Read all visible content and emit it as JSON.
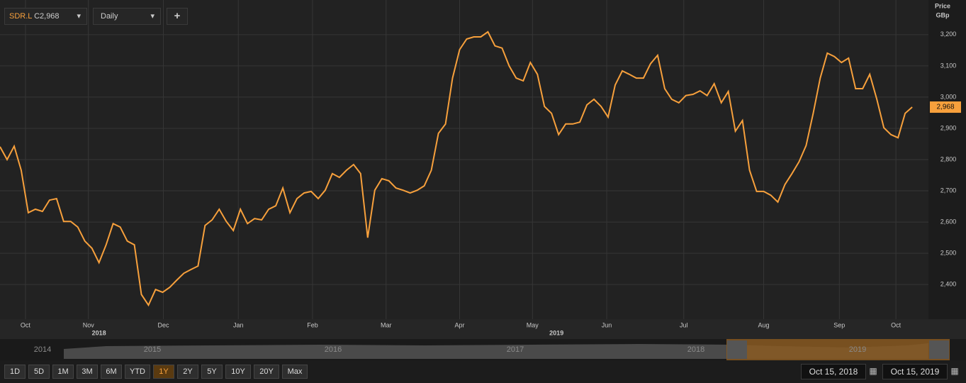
{
  "toolbar": {
    "symbol": "SDR.L",
    "close_prefix": "C",
    "close": "2,968",
    "interval": "Daily",
    "add": "+"
  },
  "chart_data": {
    "type": "line",
    "axis_title": [
      "Price",
      "GBp"
    ],
    "values": [
      2841,
      2800,
      2843,
      2766,
      2630,
      2641,
      2634,
      2670,
      2675,
      2602,
      2602,
      2584,
      2539,
      2516,
      2470,
      2527,
      2595,
      2584,
      2539,
      2527,
      2368,
      2334,
      2384,
      2375,
      2391,
      2414,
      2436,
      2448,
      2459,
      2589,
      2607,
      2641,
      2602,
      2573,
      2641,
      2595,
      2611,
      2607,
      2641,
      2652,
      2709,
      2630,
      2675,
      2693,
      2698,
      2675,
      2702,
      2755,
      2743,
      2766,
      2784,
      2755,
      2550,
      2702,
      2739,
      2732,
      2709,
      2702,
      2693,
      2702,
      2716,
      2766,
      2884,
      2914,
      3061,
      3152,
      3186,
      3193,
      3193,
      3209,
      3164,
      3157,
      3100,
      3061,
      3052,
      3111,
      3073,
      2970,
      2948,
      2880,
      2914,
      2914,
      2920,
      2975,
      2993,
      2970,
      2936,
      3039,
      3084,
      3073,
      3061,
      3061,
      3107,
      3134,
      3027,
      2993,
      2982,
      3005,
      3009,
      3020,
      3005,
      3043,
      2982,
      3018,
      2891,
      2925,
      2766,
      2698,
      2698,
      2686,
      2664,
      2720,
      2755,
      2793,
      2845,
      2948,
      3061,
      3141,
      3130,
      3111,
      3125,
      3027,
      3027,
      3073,
      2993,
      2902,
      2880,
      2870,
      2948,
      2968
    ],
    "color": "#f7a03c",
    "current_label": {
      "value": 2968,
      "label": "2,968"
    },
    "xlim": [
      0,
      131.3
    ],
    "xticks": [
      {
        "value": 3.6,
        "label": "Oct"
      },
      {
        "value": 12.5,
        "label": "Nov"
      },
      {
        "value": 23.1,
        "label": "Dec"
      },
      {
        "value": 33.7,
        "label": "Jan"
      },
      {
        "value": 44.2,
        "label": "Feb"
      },
      {
        "value": 54.6,
        "label": "Mar"
      },
      {
        "value": 65,
        "label": "Apr"
      },
      {
        "value": 75.3,
        "label": "May"
      },
      {
        "value": 85.8,
        "label": "Jun"
      },
      {
        "value": 96.7,
        "label": "Jul"
      },
      {
        "value": 108,
        "label": "Aug"
      },
      {
        "value": 118.7,
        "label": "Sep"
      },
      {
        "value": 126.7,
        "label": "Oct"
      }
    ],
    "year_ticks": [
      {
        "value": 14,
        "label": "2018"
      },
      {
        "value": 78.7,
        "label": "2019"
      }
    ],
    "ylim": [
      2289,
      3311
    ],
    "yticks": [
      {
        "value": 2400,
        "label": "2,400"
      },
      {
        "value": 2500,
        "label": "2,500"
      },
      {
        "value": 2600,
        "label": "2,600"
      },
      {
        "value": 2700,
        "label": "2,700"
      },
      {
        "value": 2800,
        "label": "2,800"
      },
      {
        "value": 2900,
        "label": "2,900"
      },
      {
        "value": 3000,
        "label": "3,000"
      },
      {
        "value": 3100,
        "label": "3,100"
      },
      {
        "value": 3200,
        "label": "3,200"
      }
    ],
    "grid": true
  },
  "navigator": {
    "years": [
      "2014",
      "2015",
      "2016",
      "2017",
      "2018",
      "2019"
    ]
  },
  "ranges": [
    "1D",
    "5D",
    "1M",
    "3M",
    "6M",
    "YTD",
    "1Y",
    "2Y",
    "5Y",
    "10Y",
    "20Y",
    "Max"
  ],
  "active_range": "1Y",
  "dates": {
    "from": "Oct 15, 2018",
    "to": "Oct 15, 2019"
  }
}
